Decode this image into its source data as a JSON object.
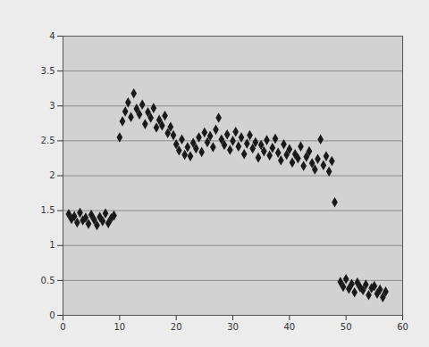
{
  "chart_data": {
    "type": "scatter",
    "x": [
      1,
      1.5,
      2,
      2.5,
      3,
      3.5,
      4,
      4.5,
      5,
      5.5,
      6,
      6.5,
      7,
      7.5,
      8,
      8.5,
      9,
      10,
      10.5,
      11,
      11.5,
      12,
      12.5,
      13,
      13.5,
      14,
      14.5,
      15,
      15.5,
      16,
      16.5,
      17,
      17.5,
      18,
      18.5,
      19,
      19.5,
      20,
      20.5,
      21,
      21.5,
      22,
      22.5,
      23,
      23.5,
      24,
      24.5,
      25,
      25.5,
      26,
      26.5,
      27,
      27.5,
      28,
      28.5,
      29,
      29.5,
      30,
      30.5,
      31,
      31.5,
      32,
      32.5,
      33,
      33.5,
      34,
      34.5,
      35,
      35.5,
      36,
      36.5,
      37,
      37.5,
      38,
      38.5,
      39,
      39.5,
      40,
      40.5,
      41,
      41.5,
      42,
      42.5,
      43,
      43.5,
      44,
      44.5,
      45,
      45.5,
      46,
      46.5,
      47,
      47.5,
      48,
      49,
      49.5,
      50,
      50.5,
      51,
      51.5,
      52,
      52.5,
      53,
      53.5,
      54,
      54.5,
      55,
      55.5,
      56,
      56.5,
      57
    ],
    "values": [
      1.45,
      1.38,
      1.42,
      1.33,
      1.47,
      1.36,
      1.4,
      1.31,
      1.44,
      1.37,
      1.29,
      1.41,
      1.35,
      1.46,
      1.32,
      1.39,
      1.43,
      2.55,
      2.78,
      2.92,
      3.05,
      2.84,
      3.18,
      2.96,
      2.88,
      3.02,
      2.74,
      2.91,
      2.83,
      2.97,
      2.69,
      2.8,
      2.72,
      2.86,
      2.61,
      2.7,
      2.58,
      2.45,
      2.36,
      2.52,
      2.3,
      2.41,
      2.28,
      2.47,
      2.39,
      2.55,
      2.34,
      2.62,
      2.48,
      2.57,
      2.41,
      2.66,
      2.83,
      2.52,
      2.44,
      2.59,
      2.37,
      2.5,
      2.63,
      2.42,
      2.55,
      2.31,
      2.46,
      2.58,
      2.39,
      2.48,
      2.26,
      2.44,
      2.35,
      2.51,
      2.29,
      2.4,
      2.53,
      2.33,
      2.22,
      2.45,
      2.3,
      2.38,
      2.19,
      2.31,
      2.25,
      2.42,
      2.14,
      2.27,
      2.35,
      2.18,
      2.09,
      2.24,
      2.52,
      2.15,
      2.28,
      2.06,
      2.21,
      1.62,
      0.48,
      0.41,
      0.52,
      0.38,
      0.45,
      0.33,
      0.47,
      0.4,
      0.36,
      0.44,
      0.29,
      0.39,
      0.42,
      0.31,
      0.37,
      0.26,
      0.34
    ],
    "color": "#1a1a1a",
    "marker": "diamond",
    "xlim": [
      0,
      60
    ],
    "xticks": [
      0,
      10,
      20,
      30,
      40,
      50,
      60
    ],
    "ylim": [
      0,
      4
    ],
    "yticks": [
      0,
      0.5,
      1,
      1.5,
      2,
      2.5,
      3,
      3.5,
      4
    ],
    "grid": true
  }
}
